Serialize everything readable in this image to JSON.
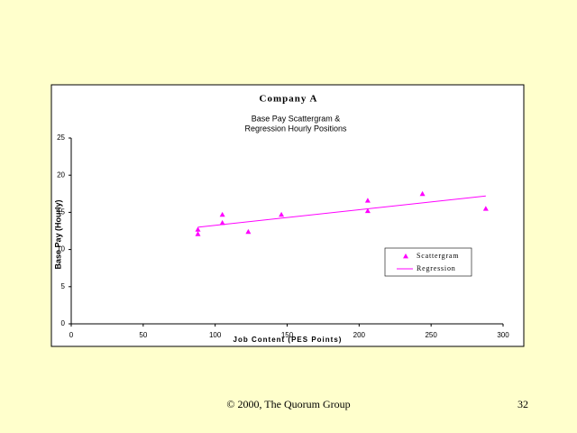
{
  "chart_data": {
    "type": "scatter",
    "title": "Company A",
    "subtitle": [
      "Base Pay Scattergram &",
      "Regression Hourly  Positions"
    ],
    "x_label": "Job Content (PES Points)",
    "y_label": "Base Pay (Hourly)",
    "xlim": [
      0,
      300
    ],
    "xticks": [
      0,
      50,
      100,
      150,
      200,
      250,
      300
    ],
    "ylim": [
      0,
      25
    ],
    "yticks": [
      0,
      5,
      10,
      15,
      20,
      25
    ],
    "grid": false,
    "series": [
      {
        "name": "Scattergram",
        "color": "#ff00ff",
        "style": "marker",
        "x": [
          88,
          88,
          105,
          105,
          123,
          146,
          206,
          206,
          244,
          288
        ],
        "values": [
          12.7,
          12.1,
          14.7,
          13.6,
          12.4,
          14.7,
          16.6,
          15.2,
          17.5,
          15.5
        ]
      },
      {
        "name": "Regression",
        "color": "#ff00ff",
        "style": "line",
        "x": [
          88,
          288
        ],
        "values": [
          13.0,
          17.2
        ]
      }
    ]
  },
  "footer": {
    "text": "© 2000, The Quorum Group",
    "page": "32"
  }
}
